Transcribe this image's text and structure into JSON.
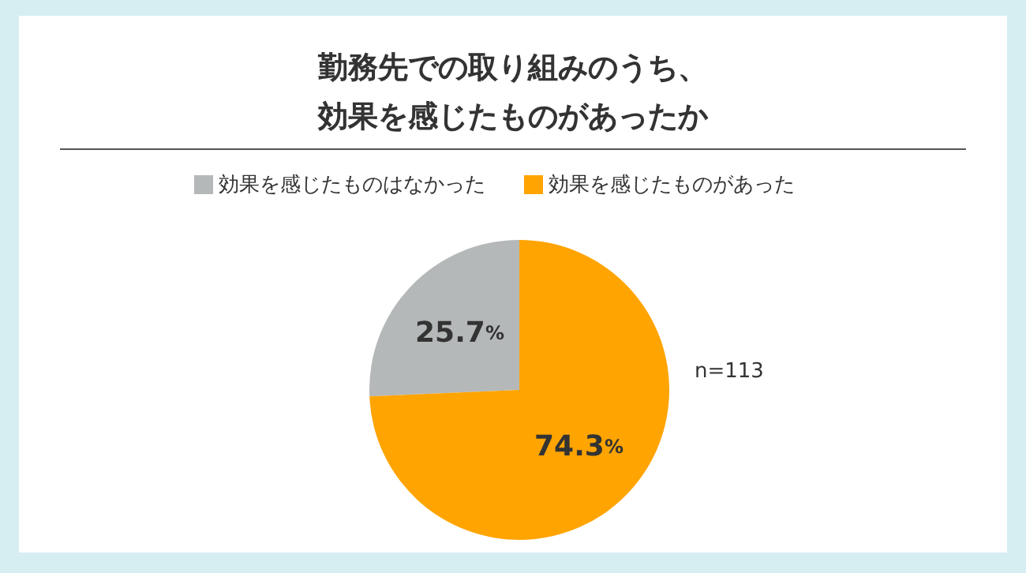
{
  "chart_data": {
    "type": "pie",
    "title": "勤務先での取り組みのうち、効果を感じたものがあったか",
    "categories": [
      "効果を感じたものはなかった",
      "効果を感じたものがあった"
    ],
    "values": [
      25.7,
      74.3
    ],
    "colors": [
      "#b5b8b9",
      "#ffa400"
    ],
    "value_labels": [
      "25.7%",
      "74.3%"
    ],
    "legend": "top",
    "annotations": [
      "n=113"
    ]
  }
}
